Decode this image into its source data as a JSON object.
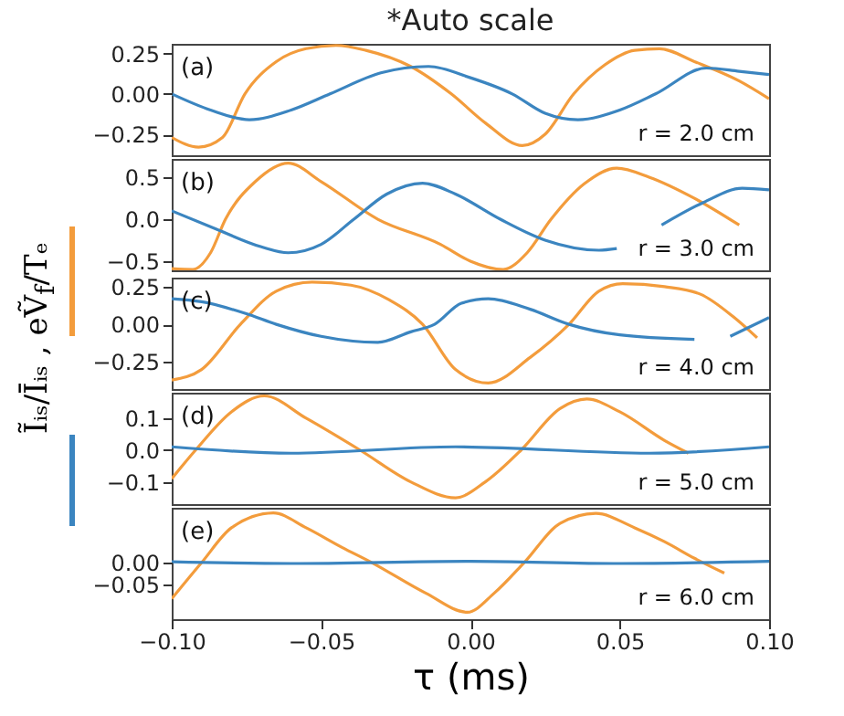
{
  "chart_data": [
    {
      "type": "line",
      "title": "*Auto scale",
      "annotations": [
        "(a)",
        "r = 2.0 cm"
      ],
      "xlim": [
        -0.1,
        0.1
      ],
      "xticks": [
        {
          "value": -0.1,
          "label": null
        },
        {
          "value": -0.05,
          "label": null
        },
        {
          "value": 0,
          "label": null
        },
        {
          "value": 0.05,
          "label": null
        },
        {
          "value": 0.1,
          "label": null
        }
      ],
      "tick_labels": "y",
      "ylim": [
        -0.38,
        0.31
      ],
      "yticks": [
        {
          "value": -0.25,
          "label": "−0.25"
        },
        {
          "value": 0,
          "label": "0.00"
        },
        {
          "value": 0.25,
          "label": "0.25"
        }
      ],
      "grid": false,
      "series": [
        {
          "color": "#f39c3c",
          "x": [
            -0.1,
            -0.091,
            -0.083,
            -0.0755,
            -0.065,
            -0.055,
            -0.045,
            -0.035,
            -0.02,
            -0.0064,
            0.005,
            0.0174,
            0.025,
            0.0346,
            0.045,
            0.055,
            0.0633,
            0.075,
            0.09,
            0.1
          ],
          "values": [
            -0.27,
            -0.33,
            -0.27,
            0,
            0.2,
            0.28,
            0.3,
            0.27,
            0.17,
            0,
            -0.18,
            -0.32,
            -0.25,
            0,
            0.18,
            0.27,
            0.28,
            0.2,
            0.08,
            -0.03
          ]
        },
        {
          "color": "#3b85c0",
          "x": [
            -0.1,
            -0.087,
            -0.074,
            -0.06,
            -0.047,
            -0.03,
            -0.014,
            0,
            0.014,
            0.025,
            0.036,
            0.05,
            0.062,
            0.079,
            0.09,
            0.1
          ],
          "values": [
            0,
            -0.1,
            -0.16,
            -0.1,
            0,
            0.13,
            0.17,
            0.1,
            0,
            -0.12,
            -0.16,
            -0.1,
            0,
            0.16,
            0.14,
            0.12
          ]
        }
      ]
    },
    {
      "type": "line",
      "annotations": [
        "(b)",
        "r = 3.0 cm"
      ],
      "xlim": [
        -0.1,
        0.1
      ],
      "xticks": [
        {
          "value": -0.1,
          "label": null
        },
        {
          "value": -0.05,
          "label": null
        },
        {
          "value": 0,
          "label": null
        },
        {
          "value": 0.05,
          "label": null
        },
        {
          "value": 0.1,
          "label": null
        }
      ],
      "tick_labels": "y",
      "ylim": [
        -0.61,
        0.72
      ],
      "yticks": [
        {
          "value": -0.5,
          "label": "−0.5"
        },
        {
          "value": 0,
          "label": "0.0"
        },
        {
          "value": 0.5,
          "label": "0.5"
        }
      ],
      "grid": false,
      "series": [
        {
          "color": "#f39c3c",
          "x": [
            -0.1,
            -0.093,
            -0.087,
            -0.082,
            -0.072,
            -0.061,
            -0.05,
            -0.031,
            -0.01,
            0,
            0.011,
            0.019,
            0.027,
            0.038,
            0.049,
            0.06,
            0.075,
            0.09
          ],
          "values": [
            -0.59,
            -0.6,
            -0.4,
            0,
            0.45,
            0.67,
            0.45,
            0,
            -0.3,
            -0.5,
            -0.6,
            -0.4,
            0,
            0.42,
            0.61,
            0.5,
            0.25,
            -0.07
          ]
        },
        {
          "color": "#3b85c0",
          "x": [
            -0.1,
            -0.085,
            -0.07,
            -0.061,
            -0.05,
            -0.039,
            -0.028,
            -0.016,
            -0.005,
            0.01,
            0.025,
            0.043,
            0.049,
            0.056,
            0.064,
            0.078,
            0.091,
            0.1
          ],
          "values": [
            0.1,
            -0.12,
            -0.33,
            -0.4,
            -0.3,
            0,
            0.3,
            0.43,
            0.3,
            0,
            -0.25,
            -0.37,
            -0.35,
            null,
            -0.07,
            0.2,
            0.37,
            0.35
          ]
        }
      ]
    },
    {
      "type": "line",
      "ylabel": "Ĩᵢₛ/Īᵢₛ , eṼ$_{f}$/Tₑ",
      "annotations": [
        "(c)",
        "r = 4.0 cm"
      ],
      "xlim": [
        -0.1,
        0.1
      ],
      "xticks": [
        {
          "value": -0.1,
          "label": null
        },
        {
          "value": -0.05,
          "label": null
        },
        {
          "value": 0,
          "label": null
        },
        {
          "value": 0.05,
          "label": null
        },
        {
          "value": 0.1,
          "label": null
        }
      ],
      "tick_labels": "y",
      "ylim": [
        -0.43,
        0.31
      ],
      "yticks": [
        {
          "value": -0.25,
          "label": "−0.25"
        },
        {
          "value": 0,
          "label": "0.00"
        },
        {
          "value": 0.25,
          "label": "0.25"
        }
      ],
      "grid": false,
      "series": [
        {
          "color": "#f39c3c",
          "x": [
            -0.1,
            -0.09,
            -0.077,
            -0.065,
            -0.053,
            -0.04,
            -0.027,
            -0.016,
            -0.005,
            0.006,
            0.02,
            0.033,
            0.043,
            0.051,
            0.065,
            0.077,
            0.088,
            0.096
          ],
          "values": [
            -0.37,
            -0.3,
            0,
            0.22,
            0.28,
            0.26,
            0.16,
            0,
            -0.3,
            -0.39,
            -0.22,
            0,
            0.22,
            0.27,
            0.25,
            0.2,
            0.05,
            -0.09
          ]
        },
        {
          "color": "#3b85c0",
          "x": [
            -0.1,
            -0.09,
            -0.075,
            -0.065,
            -0.05,
            -0.031,
            -0.02,
            -0.012,
            -0.003,
            0.006,
            0.02,
            0.033,
            0.05,
            0.075,
            0.08,
            0.087,
            0.1
          ],
          "values": [
            0.17,
            0.15,
            0.07,
            0,
            -0.08,
            -0.12,
            -0.05,
            0,
            0.14,
            0.17,
            0.1,
            0,
            -0.07,
            -0.1,
            null,
            -0.08,
            0.045
          ]
        }
      ]
    },
    {
      "type": "line",
      "annotations": [
        "(d)",
        "r = 5.0 cm"
      ],
      "xlim": [
        -0.1,
        0.1
      ],
      "xticks": [
        {
          "value": -0.1,
          "label": null
        },
        {
          "value": -0.05,
          "label": null
        },
        {
          "value": 0,
          "label": null
        },
        {
          "value": 0.05,
          "label": null
        },
        {
          "value": 0.1,
          "label": null
        }
      ],
      "tick_labels": "y",
      "ylim": [
        -0.17,
        0.18
      ],
      "yticks": [
        {
          "value": -0.1,
          "label": "−0.1"
        },
        {
          "value": 0,
          "label": "0.0"
        },
        {
          "value": 0.1,
          "label": "0.1"
        }
      ],
      "grid": false,
      "series": [
        {
          "color": "#f39c3c",
          "x": [
            -0.1,
            -0.092,
            -0.08,
            -0.069,
            -0.055,
            -0.037,
            -0.02,
            -0.005,
            0.005,
            0.017,
            0.03,
            0.039,
            0.05,
            0.065,
            0.073
          ],
          "values": [
            -0.09,
            0,
            0.12,
            0.17,
            0.1,
            0,
            -0.1,
            -0.15,
            -0.1,
            0,
            0.13,
            0.16,
            0.12,
            0.03,
            -0.01
          ]
        },
        {
          "color": "#3b85c0",
          "x": [
            -0.1,
            -0.06,
            -0.005,
            0.06,
            0.1
          ],
          "values": [
            0.01,
            -0.01,
            0.01,
            -0.01,
            0.01
          ]
        }
      ]
    },
    {
      "type": "line",
      "xlabel": "τ (ms)",
      "annotations": [
        "(e)",
        "r = 6.0 cm"
      ],
      "xlim": [
        -0.1,
        0.1
      ],
      "xticks": [
        {
          "value": -0.1,
          "label": "−0.10"
        },
        {
          "value": -0.05,
          "label": "−0.05"
        },
        {
          "value": 0,
          "label": "0.00"
        },
        {
          "value": 0.05,
          "label": "0.05"
        },
        {
          "value": 0.1,
          "label": "0.10"
        }
      ],
      "ylim": [
        -0.13,
        0.126
      ],
      "yticks": [
        {
          "value": -0.05,
          "label": "−0.05"
        },
        {
          "value": 0,
          "label": "0.00"
        }
      ],
      "grid": false,
      "series": [
        {
          "color": "#f39c3c",
          "x": [
            -0.1,
            -0.09,
            -0.08,
            -0.066,
            -0.055,
            -0.043,
            -0.033,
            -0.015,
            -0.001,
            0.008,
            0.018,
            0.03,
            0.042,
            0.055,
            0.065,
            0.075,
            0.085
          ],
          "values": [
            -0.083,
            0,
            0.08,
            0.114,
            0.08,
            0.035,
            0,
            -0.07,
            -0.114,
            -0.07,
            0,
            0.09,
            0.113,
            0.08,
            0.048,
            0.01,
            -0.024
          ]
        },
        {
          "color": "#3b85c0",
          "x": [
            -0.1,
            -0.06,
            0,
            0.05,
            0.1
          ],
          "values": [
            0.002,
            -0.002,
            0.003,
            -0.002,
            0.003
          ]
        }
      ]
    }
  ]
}
